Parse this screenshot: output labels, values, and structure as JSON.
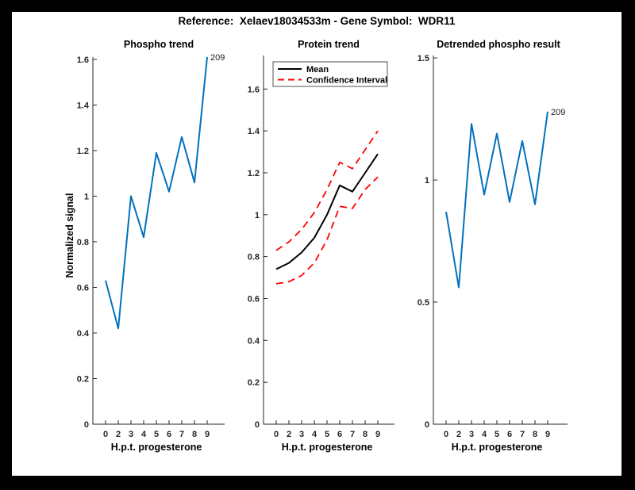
{
  "figure": {
    "title": "Reference:  Xelaev18034533m - Gene Symbol:  WDR11"
  },
  "colors": {
    "line_blue": "#0072BD",
    "ci_red": "#FF0000",
    "mean_black": "#000000",
    "axis_gray": "#262626",
    "border_black": "#000000",
    "page_white": "#ffffff"
  },
  "chart_data": [
    {
      "type": "line",
      "title": "Phospho trend",
      "xlabel": "H.p.t. progesterone",
      "ylabel": "Normalized signal",
      "grid": false,
      "x_tick_labels": [
        "0",
        "2",
        "3",
        "4",
        "5",
        "6",
        "7",
        "8",
        "9"
      ],
      "y_ticks": [
        {
          "v": 0,
          "label": "0"
        },
        {
          "v": 0.2,
          "label": "0.2"
        },
        {
          "v": 0.4,
          "label": "0.4"
        },
        {
          "v": 0.6,
          "label": "0.6"
        },
        {
          "v": 0.8,
          "label": "0.8"
        },
        {
          "v": 1,
          "label": "1"
        },
        {
          "v": 1.2,
          "label": "1.2"
        },
        {
          "v": 1.4,
          "label": "1.4"
        },
        {
          "v": 1.6,
          "label": "1.6"
        }
      ],
      "ylim": [
        0,
        1.61
      ],
      "series": [
        {
          "name": "phospho-signal",
          "color": "#0072BD",
          "dash": false,
          "width": 2,
          "values": [
            0.63,
            0.42,
            1.0,
            0.82,
            1.19,
            1.02,
            1.26,
            1.06,
            1.61
          ]
        }
      ],
      "annotation": {
        "text": "209"
      }
    },
    {
      "type": "line",
      "title": "Protein trend",
      "xlabel": "H.p.t. progesterone",
      "ylabel": "",
      "grid": false,
      "x_tick_labels": [
        "0",
        "2",
        "3",
        "4",
        "5",
        "6",
        "7",
        "8",
        "9"
      ],
      "y_ticks": [
        {
          "v": 0,
          "label": "0"
        },
        {
          "v": 0.2,
          "label": "0.2"
        },
        {
          "v": 0.4,
          "label": "0.4"
        },
        {
          "v": 0.6,
          "label": "0.6"
        },
        {
          "v": 0.8,
          "label": "0.8"
        },
        {
          "v": 1,
          "label": "1"
        },
        {
          "v": 1.2,
          "label": "1.2"
        },
        {
          "v": 1.4,
          "label": "1.4"
        },
        {
          "v": 1.6,
          "label": "1.6"
        }
      ],
      "ylim": [
        0,
        1.76
      ],
      "legend": {
        "position": "top-left-inside",
        "entries": [
          "Mean",
          "Confidence Interval"
        ]
      },
      "series": [
        {
          "name": "mean",
          "color": "#000000",
          "dash": false,
          "width": 2,
          "values": [
            0.74,
            0.77,
            0.82,
            0.89,
            1.0,
            1.14,
            1.11,
            1.2,
            1.29
          ]
        },
        {
          "name": "ci-upper",
          "color": "#FF0000",
          "dash": true,
          "width": 1.8,
          "values": [
            0.83,
            0.87,
            0.93,
            1.01,
            1.12,
            1.25,
            1.22,
            1.31,
            1.4
          ]
        },
        {
          "name": "ci-lower",
          "color": "#FF0000",
          "dash": true,
          "width": 1.8,
          "values": [
            0.67,
            0.68,
            0.71,
            0.77,
            0.88,
            1.04,
            1.03,
            1.12,
            1.18
          ]
        }
      ]
    },
    {
      "type": "line",
      "title": "Detrended phospho result",
      "xlabel": "H.p.t. progesterone",
      "ylabel": "",
      "grid": false,
      "x_tick_labels": [
        "0",
        "2",
        "3",
        "4",
        "5",
        "6",
        "7",
        "8",
        "9"
      ],
      "y_ticks": [
        {
          "v": 0,
          "label": "0"
        },
        {
          "v": 0.5,
          "label": "0.5"
        },
        {
          "v": 1,
          "label": "1"
        },
        {
          "v": 1.5,
          "label": "1.5"
        }
      ],
      "ylim": [
        0,
        1.51
      ],
      "series": [
        {
          "name": "detrended-signal",
          "color": "#0072BD",
          "dash": false,
          "width": 2,
          "values": [
            0.87,
            0.56,
            1.23,
            0.94,
            1.19,
            0.91,
            1.16,
            0.9,
            1.28
          ]
        }
      ],
      "annotation": {
        "text": "209"
      }
    }
  ]
}
